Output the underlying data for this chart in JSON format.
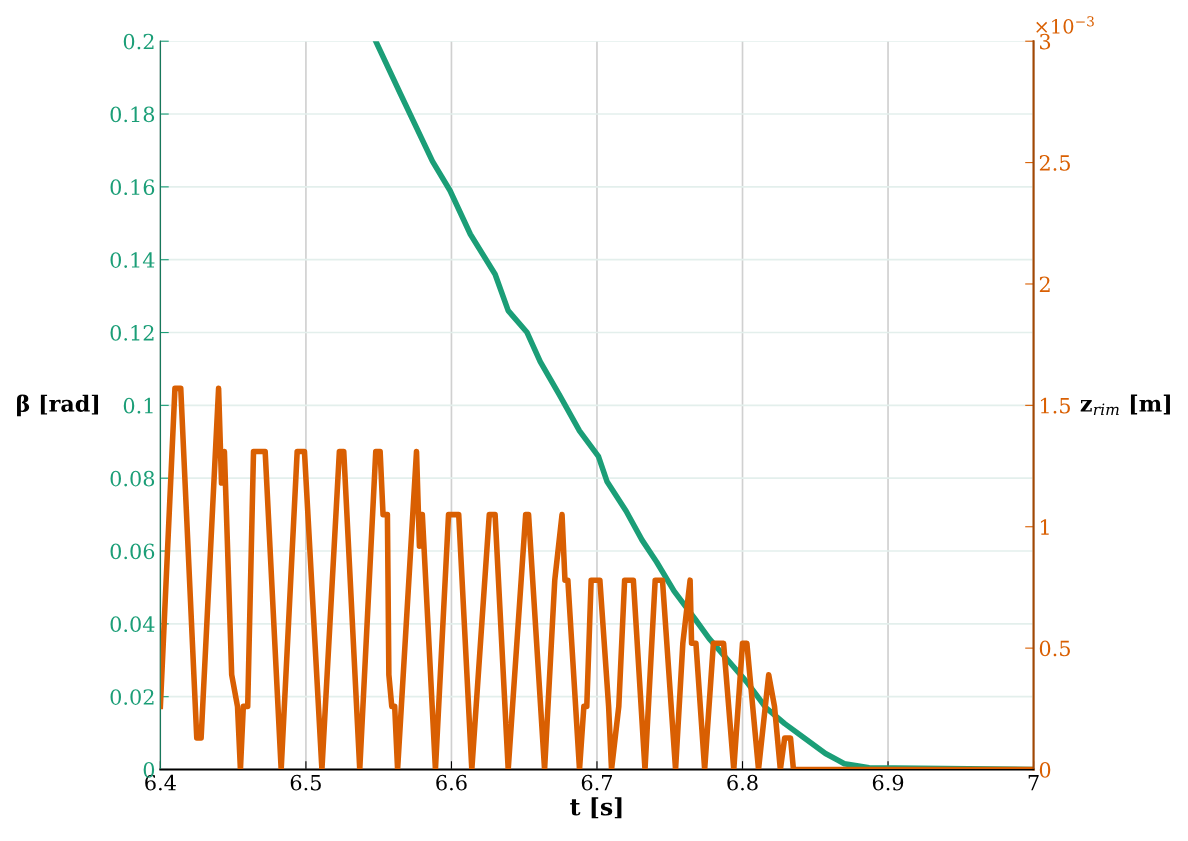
{
  "chart_data": {
    "type": "line",
    "xlabel": "t [s]",
    "ylabel": "β [rad]",
    "y2label": "z$_{rim}$ [m]",
    "annotations": [
      "×10$^{−3}$"
    ],
    "xlim": [
      6.4,
      7
    ],
    "xticks": [
      6.4,
      6.5,
      6.6,
      6.7,
      6.8,
      6.9,
      7
    ],
    "ylim": [
      0,
      0.2
    ],
    "yticks": [
      0,
      0.02,
      0.04,
      0.06,
      0.08,
      0.1,
      0.12,
      0.14,
      0.16,
      0.18,
      0.2
    ],
    "y2lim": [
      0,
      3
    ],
    "y2ticks": [
      0,
      0.5,
      1,
      1.5,
      2,
      2.5,
      3
    ],
    "grid": true,
    "line_style": "solid",
    "marker": "none",
    "series": [
      {
        "color": "#1b9e77",
        "x": [
          6.548,
          6.565,
          6.587,
          6.599,
          6.613,
          6.63,
          6.639,
          6.652,
          6.661,
          6.674,
          6.688,
          6.701,
          6.707,
          6.72,
          6.731,
          6.741,
          6.753,
          6.768,
          6.777,
          6.79,
          6.803,
          6.816,
          6.829,
          6.842,
          6.857,
          6.87,
          6.887,
          7.0
        ],
        "values": [
          0.2,
          0.1855,
          0.167,
          0.159,
          0.147,
          0.136,
          0.126,
          0.12,
          0.112,
          0.103,
          0.093,
          0.086,
          0.079,
          0.071,
          0.063,
          0.057,
          0.049,
          0.041,
          0.036,
          0.03,
          0.024,
          0.017,
          0.0126,
          0.0088,
          0.0044,
          0.0016,
          0.0005,
          0
        ]
      },
      {
        "color": "#d95f02",
        "axis": "y2",
        "x": [
          6.4,
          6.41,
          6.414,
          6.425,
          6.428,
          6.44,
          6.442,
          6.444,
          6.449,
          6.453,
          6.455,
          6.457,
          6.46,
          6.464,
          6.472,
          6.483,
          6.494,
          6.499,
          6.511,
          6.523,
          6.526,
          6.537,
          6.548,
          6.551,
          6.553,
          6.556,
          6.557,
          6.559,
          6.561,
          6.563,
          6.576,
          6.578,
          6.579,
          6.58,
          6.589,
          6.598,
          6.605,
          6.614,
          6.626,
          6.63,
          6.639,
          6.651,
          6.653,
          6.664,
          6.671,
          6.676,
          6.678,
          6.68,
          6.688,
          6.691,
          6.693,
          6.696,
          6.702,
          6.708,
          6.71,
          6.715,
          6.719,
          6.725,
          6.733,
          6.74,
          6.745,
          6.754,
          6.759,
          6.764,
          6.765,
          6.768,
          6.774,
          6.78,
          6.787,
          6.794,
          6.8,
          6.803,
          6.811,
          6.818,
          6.822,
          6.826,
          6.829,
          6.833,
          6.835,
          7.0
        ],
        "values": [
          0.26,
          1.57,
          1.57,
          0.13,
          0.13,
          1.57,
          1.18,
          1.31,
          0.39,
          0.26,
          0,
          0.26,
          0.26,
          1.31,
          1.31,
          0,
          1.31,
          1.31,
          0,
          1.31,
          1.31,
          0,
          1.31,
          1.31,
          1.05,
          1.05,
          0.39,
          0.26,
          0.26,
          0,
          1.31,
          0.92,
          1.05,
          1.05,
          0,
          1.05,
          1.05,
          0,
          1.05,
          1.05,
          0,
          1.05,
          1.05,
          0,
          0.78,
          1.05,
          0.78,
          0.78,
          0,
          0.26,
          0.26,
          0.78,
          0.78,
          0.26,
          0,
          0.26,
          0.78,
          0.78,
          0,
          0.78,
          0.78,
          0,
          0.52,
          0.78,
          0.52,
          0.52,
          0,
          0.52,
          0.52,
          0,
          0.52,
          0.52,
          0,
          0.39,
          0.26,
          0,
          0.13,
          0.13,
          0,
          0
        ]
      }
    ]
  }
}
